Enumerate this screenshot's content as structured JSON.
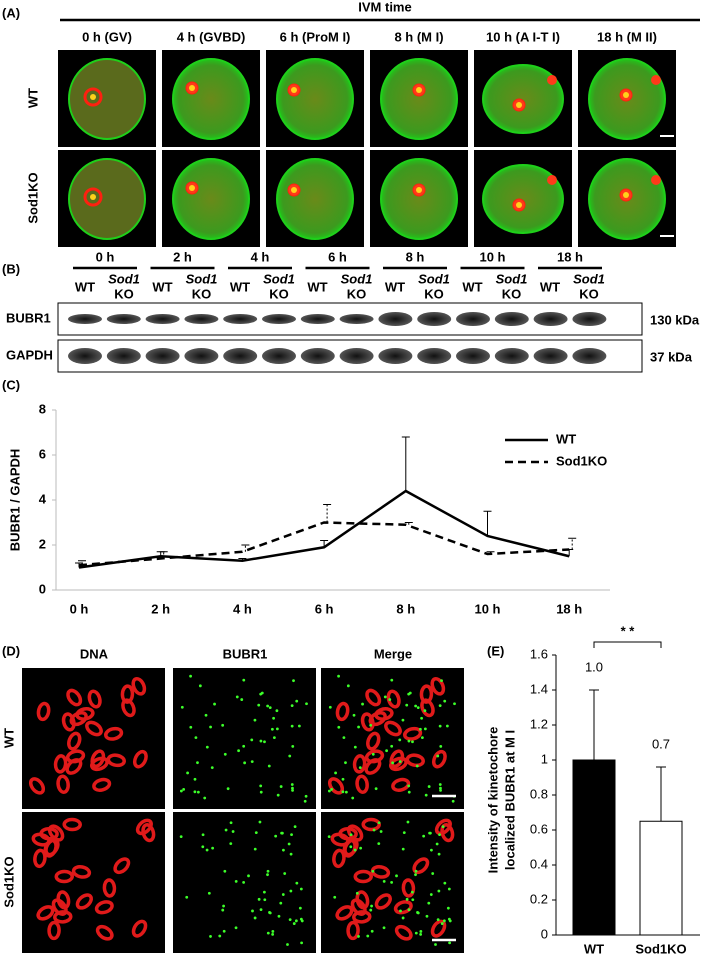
{
  "panel_a": {
    "label": "(A)",
    "header": "IVM time",
    "columns": [
      "0 h (GV)",
      "4 h (GVBD)",
      "6 h (ProM I)",
      "8 h (M I)",
      "10 h (A I-T I)",
      "18 h (M II)"
    ],
    "rows": [
      "WT",
      "Sod1KO"
    ]
  },
  "panel_b": {
    "label": "(B)",
    "times": [
      "0 h",
      "2 h",
      "4 h",
      "6 h",
      "8 h",
      "10 h",
      "18 h"
    ],
    "lane_wt": "WT",
    "lane_ko_top": "Sod1",
    "lane_ko_bottom": "KO",
    "rows": [
      {
        "name": "BUBR1",
        "size": "130 kDa"
      },
      {
        "name": "GAPDH",
        "size": "37 kDa"
      }
    ]
  },
  "panel_c": {
    "label": "(C)"
  },
  "panel_d": {
    "label": "(D)",
    "columns": [
      "DNA",
      "BUBR1",
      "Merge"
    ],
    "rows": [
      "WT",
      "Sod1KO"
    ]
  },
  "panel_e": {
    "label": "(E)"
  },
  "chart_data": [
    {
      "type": "line",
      "ylabel": "BUBR1 / GAPDH",
      "categories": [
        "0 h",
        "2 h",
        "4 h",
        "6 h",
        "8 h",
        "10 h",
        "18 h"
      ],
      "ylim": [
        0,
        8
      ],
      "yticks": [
        0,
        2,
        4,
        6,
        8
      ],
      "legend": "upper right",
      "series": [
        {
          "name": "WT",
          "color": "#000000",
          "dashed": false,
          "values": [
            1.0,
            1.5,
            1.3,
            1.9,
            4.4,
            2.4,
            1.5
          ],
          "errors": [
            0.2,
            0.2,
            0.1,
            0.3,
            2.4,
            1.1,
            0.3
          ]
        },
        {
          "name": "Sod1KO",
          "color": "#000000",
          "dashed": true,
          "values": [
            1.1,
            1.4,
            1.7,
            3.0,
            2.9,
            1.6,
            1.8
          ],
          "errors": [
            0.2,
            0.3,
            0.3,
            0.8,
            0.1,
            0.1,
            0.5
          ]
        }
      ]
    },
    {
      "type": "bar",
      "ylabel": [
        "Intensity of kinetochore",
        "localized BUBR1 at M I"
      ],
      "categories": [
        "WT",
        "Sod1KO"
      ],
      "values": [
        1,
        0.65
      ],
      "value_labels": [
        "1.0",
        "0.7"
      ],
      "errors": [
        0.4,
        0.31
      ],
      "colors": [
        "#000000",
        "#ffffff"
      ],
      "ylim": [
        0,
        1.6
      ],
      "yticks": [
        0,
        0.2,
        0.4,
        0.6,
        0.8,
        1,
        1.2,
        1.4,
        1.6
      ],
      "annotation": "* *"
    }
  ]
}
